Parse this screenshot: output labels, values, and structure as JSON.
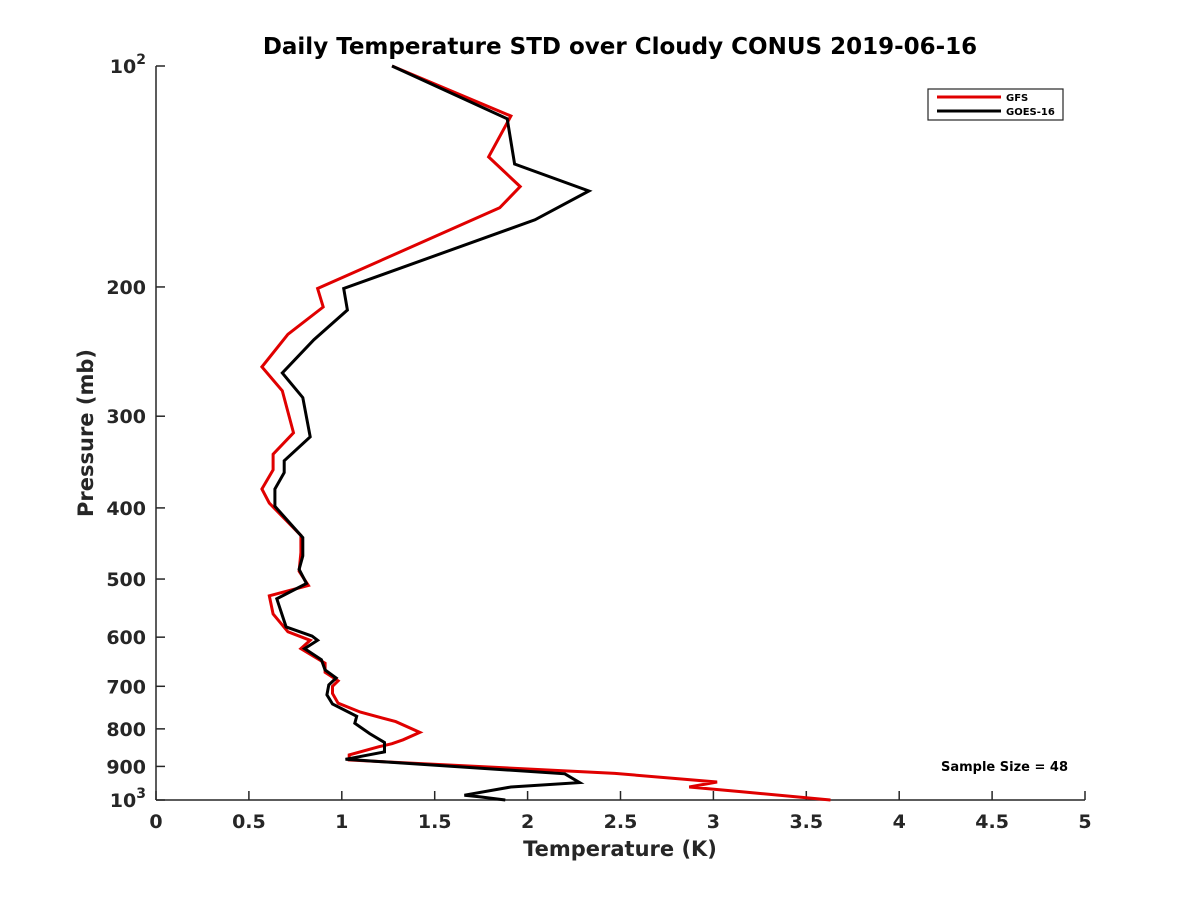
{
  "chart_data": {
    "type": "line",
    "title": "Daily Temperature STD over Cloudy CONUS 2019-06-16",
    "xlabel": "Temperature (K)",
    "ylabel": "Pressure (mb)",
    "xlim": [
      0,
      5
    ],
    "ylim": [
      100,
      1000
    ],
    "yscale": "log",
    "y_reversed": true,
    "x_ticks": [
      0,
      0.5,
      1,
      1.5,
      2,
      2.5,
      3,
      3.5,
      4,
      4.5,
      5
    ],
    "x_tick_labels": [
      "0",
      "0.5",
      "1",
      "1.5",
      "2",
      "2.5",
      "3",
      "3.5",
      "4",
      "4.5",
      "5"
    ],
    "y_ticks": [
      100,
      200,
      300,
      400,
      500,
      600,
      700,
      800,
      900,
      1000
    ],
    "y_tick_labels": [
      {
        "base": "10",
        "exp": "2"
      },
      {
        "base": "200",
        "exp": ""
      },
      {
        "base": "300",
        "exp": ""
      },
      {
        "base": "400",
        "exp": ""
      },
      {
        "base": "500",
        "exp": ""
      },
      {
        "base": "600",
        "exp": ""
      },
      {
        "base": "700",
        "exp": ""
      },
      {
        "base": "800",
        "exp": ""
      },
      {
        "base": "900",
        "exp": ""
      },
      {
        "base": "10",
        "exp": "3"
      }
    ],
    "grid": false,
    "legend_position": "top-right",
    "annotation": "Sample Size = 48",
    "series": [
      {
        "name": "GFS",
        "color": "#e00000",
        "points": [
          [
            1.27,
            100
          ],
          [
            1.91,
            117
          ],
          [
            1.79,
            133
          ],
          [
            1.96,
            146
          ],
          [
            1.85,
            156
          ],
          [
            0.87,
            201
          ],
          [
            0.9,
            213
          ],
          [
            0.71,
            232
          ],
          [
            0.57,
            257
          ],
          [
            0.68,
            277
          ],
          [
            0.74,
            316
          ],
          [
            0.63,
            338
          ],
          [
            0.63,
            355
          ],
          [
            0.57,
            377
          ],
          [
            0.61,
            394
          ],
          [
            0.78,
            436
          ],
          [
            0.78,
            460
          ],
          [
            0.77,
            488
          ],
          [
            0.82,
            510
          ],
          [
            0.61,
            527
          ],
          [
            0.63,
            558
          ],
          [
            0.71,
            590
          ],
          [
            0.83,
            606
          ],
          [
            0.78,
            622
          ],
          [
            0.91,
            651
          ],
          [
            0.91,
            670
          ],
          [
            0.98,
            688
          ],
          [
            0.95,
            700
          ],
          [
            0.95,
            716
          ],
          [
            0.98,
            738
          ],
          [
            1.1,
            759
          ],
          [
            1.29,
            782
          ],
          [
            1.42,
            809
          ],
          [
            1.33,
            828
          ],
          [
            1.27,
            838
          ],
          [
            1.2,
            846
          ],
          [
            1.04,
            868
          ],
          [
            1.04,
            882
          ],
          [
            2.47,
            920
          ],
          [
            3.02,
            945
          ],
          [
            2.87,
            960
          ],
          [
            3.16,
            975
          ],
          [
            3.63,
            1000
          ]
        ]
      },
      {
        "name": "GOES-16",
        "color": "#000000",
        "points": [
          [
            1.27,
            100
          ],
          [
            1.89,
            118
          ],
          [
            1.93,
            136
          ],
          [
            2.33,
            148
          ],
          [
            2.04,
            162
          ],
          [
            1.01,
            201
          ],
          [
            1.03,
            215
          ],
          [
            0.85,
            236
          ],
          [
            0.68,
            262
          ],
          [
            0.79,
            283
          ],
          [
            0.83,
            320
          ],
          [
            0.69,
            345
          ],
          [
            0.69,
            358
          ],
          [
            0.64,
            377
          ],
          [
            0.64,
            398
          ],
          [
            0.79,
            439
          ],
          [
            0.79,
            465
          ],
          [
            0.77,
            485
          ],
          [
            0.81,
            507
          ],
          [
            0.65,
            532
          ],
          [
            0.7,
            581
          ],
          [
            0.84,
            598
          ],
          [
            0.87,
            606
          ],
          [
            0.8,
            622
          ],
          [
            0.89,
            644
          ],
          [
            0.91,
            665
          ],
          [
            0.97,
            682
          ],
          [
            0.93,
            697
          ],
          [
            0.92,
            719
          ],
          [
            0.95,
            740
          ],
          [
            1.08,
            769
          ],
          [
            1.07,
            786
          ],
          [
            1.15,
            812
          ],
          [
            1.23,
            835
          ],
          [
            1.23,
            860
          ],
          [
            1.02,
            880
          ],
          [
            2.2,
            921
          ],
          [
            2.28,
            947
          ],
          [
            1.91,
            960
          ],
          [
            1.66,
            985
          ],
          [
            1.74,
            990
          ],
          [
            1.88,
            1000
          ]
        ]
      }
    ]
  }
}
